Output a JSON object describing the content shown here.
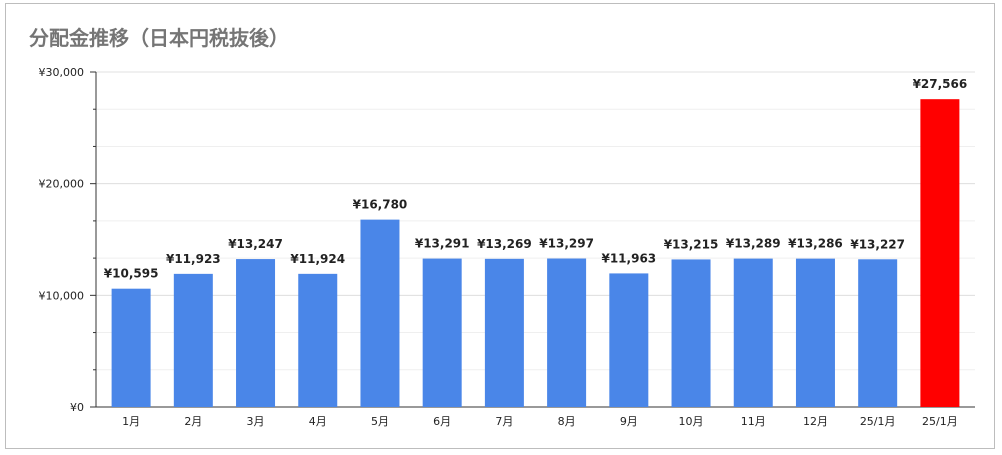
{
  "chart_data": {
    "type": "bar",
    "title": "分配金推移（日本円税抜後）",
    "xlabel": "",
    "ylabel": "",
    "ylim": [
      0,
      30000
    ],
    "yticks": [
      0,
      10000,
      20000,
      30000
    ],
    "ytick_labels": [
      "¥0",
      "¥10,000",
      "¥20,000",
      "¥30,000"
    ],
    "grid": true,
    "legend": "none",
    "categories": [
      "1月",
      "2月",
      "3月",
      "4月",
      "5月",
      "6月",
      "7月",
      "8月",
      "9月",
      "10月",
      "11月",
      "12月",
      "25/1月",
      "25/1月"
    ],
    "values": [
      10595,
      11923,
      13247,
      11924,
      16780,
      13291,
      13269,
      13297,
      11963,
      13215,
      13289,
      13286,
      13227,
      27566
    ],
    "data_labels": [
      "¥10,595",
      "¥11,923",
      "¥13,247",
      "¥11,924",
      "¥16,780",
      "¥13,291",
      "¥13,269",
      "¥13,297",
      "¥11,963",
      "¥13,215",
      "¥13,289",
      "¥13,286",
      "¥13,227",
      "¥27,566"
    ],
    "colors": {
      "bar": "#4a86e8",
      "highlight": "#ff0000",
      "grid": "#e0e0e0",
      "axis": "#333333",
      "title": "#757575"
    },
    "highlight_index": 13
  }
}
